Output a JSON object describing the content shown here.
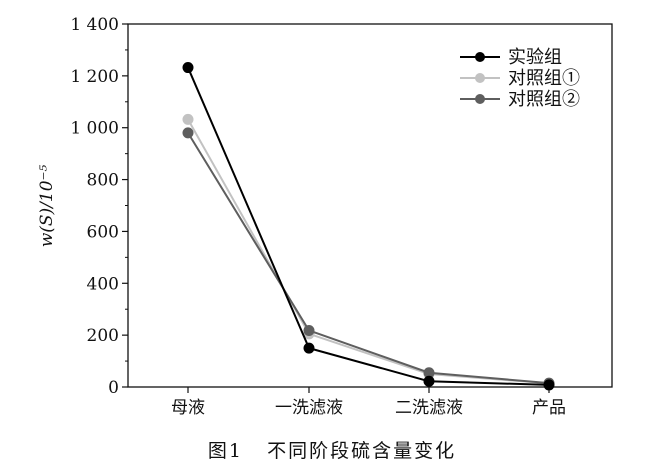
{
  "figure": {
    "caption": "图1   不同阶段硫含量变化"
  },
  "chart_data": {
    "type": "line",
    "title": "",
    "xlabel": "",
    "ylabel": "w(S)/10⁻⁵",
    "categories": [
      "母液",
      "一洗滤液",
      "二洗滤液",
      "产品"
    ],
    "ylim": [
      0,
      1400
    ],
    "yticks": [
      0,
      200,
      400,
      600,
      800,
      1000,
      1200,
      1400
    ],
    "ytick_labels": [
      "0",
      "200",
      "400",
      "600",
      "800",
      "1 000",
      "1 200",
      "1 400"
    ],
    "grid": false,
    "legend_position": "top-right",
    "series": [
      {
        "name": "实验组",
        "values": [
          1232,
          150,
          22,
          8
        ],
        "color": "#000000"
      },
      {
        "name": "对照组①",
        "values": [
          1032,
          205,
          50,
          14
        ],
        "color": "#c2c2c2"
      },
      {
        "name": "对照组②",
        "values": [
          980,
          218,
          55,
          15
        ],
        "color": "#5e5e5e"
      }
    ]
  }
}
